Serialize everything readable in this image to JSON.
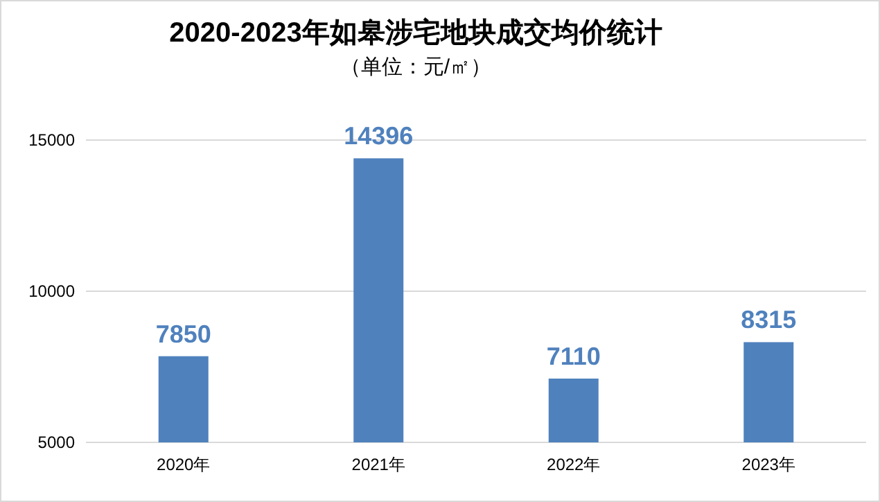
{
  "chart_data": {
    "type": "bar",
    "title": "2020-2023年如皋涉宅地块成交均价统计",
    "subtitle": "（单位：元/㎡）",
    "categories": [
      "2020年",
      "2021年",
      "2022年",
      "2023年"
    ],
    "values": [
      7850,
      14396,
      7110,
      8315
    ],
    "color": "#4f81bd",
    "ylim": [
      5000,
      15000
    ],
    "yticks": [
      5000,
      10000,
      15000
    ],
    "grid": "y",
    "data_labels": true
  }
}
